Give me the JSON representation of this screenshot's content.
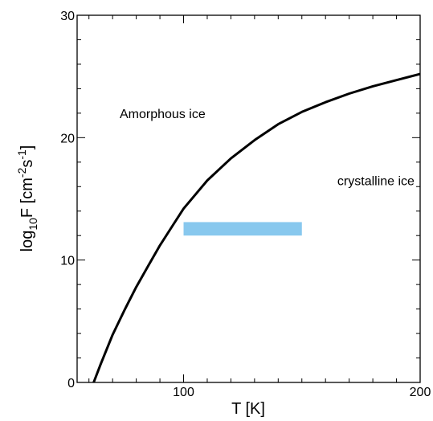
{
  "chart_data": {
    "type": "line",
    "xlabel": "T [K]",
    "ylabel": {
      "prefix": "log",
      "sub": "10",
      "main": "F [cm",
      "sup1": "-2",
      "mid": "s",
      "sup2": "-1",
      "end": "]"
    },
    "xlim": [
      55,
      200
    ],
    "ylim": [
      0,
      30
    ],
    "x_ticks": [
      100,
      200
    ],
    "y_ticks": [
      0,
      10,
      20,
      30
    ],
    "series": [
      {
        "color": "#000000",
        "x": [
          62,
          65,
          70,
          75,
          80,
          85,
          90,
          95,
          100,
          110,
          120,
          130,
          140,
          150,
          160,
          170,
          180,
          190,
          200
        ],
        "y": [
          0.0,
          1.5,
          3.9,
          5.9,
          7.8,
          9.5,
          11.2,
          12.7,
          14.2,
          16.5,
          18.3,
          19.8,
          21.1,
          22.1,
          22.9,
          23.6,
          24.2,
          24.7,
          25.2
        ]
      }
    ],
    "band": {
      "color": "#88c8ee",
      "x": [
        100,
        150
      ],
      "y": [
        12.0,
        13.1
      ]
    },
    "annotations": [
      {
        "text": "Amorphous ice",
        "x": 73,
        "y": 22
      },
      {
        "text": "crystalline ice",
        "x": 165,
        "y": 16.5
      }
    ]
  }
}
